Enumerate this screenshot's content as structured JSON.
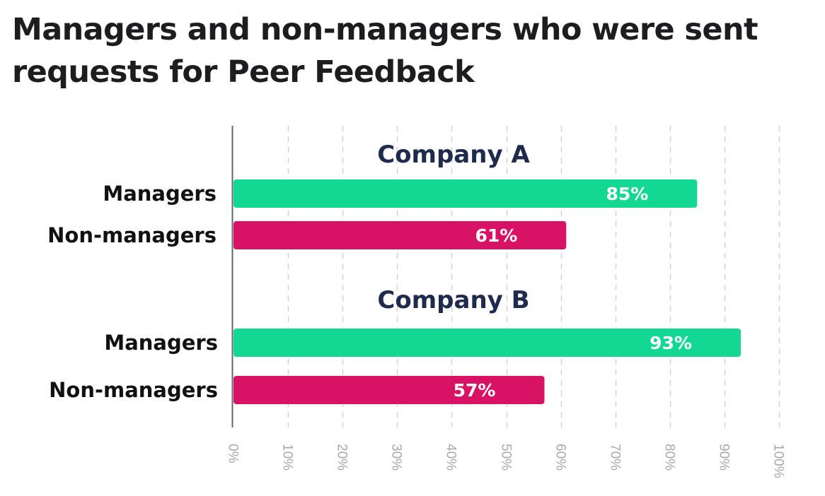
{
  "title_lines": [
    "Managers and non-managers who were sent",
    "requests for Peer Feedback"
  ],
  "chart_data": {
    "type": "bar",
    "orientation": "horizontal",
    "title": "Managers and non-managers who were sent requests for Peer Feedback",
    "xlim": [
      0,
      100
    ],
    "ticks": [
      "0%",
      "10%",
      "20%",
      "30%",
      "40%",
      "50%",
      "60%",
      "70%",
      "80%",
      "90%",
      "100%"
    ],
    "grid": true,
    "groups": [
      {
        "name": "Company A",
        "bars": [
          {
            "category": "Managers",
            "value": 85,
            "label": "85%"
          },
          {
            "category": "Non-managers",
            "value": 61,
            "label": "61%"
          }
        ]
      },
      {
        "name": "Company B",
        "bars": [
          {
            "category": "Managers",
            "value": 93,
            "label": "93%"
          },
          {
            "category": "Non-managers",
            "value": 57,
            "label": "57%"
          }
        ]
      }
    ],
    "colors": {
      "Managers": "#12d893",
      "Non-managers": "#d81366"
    }
  }
}
